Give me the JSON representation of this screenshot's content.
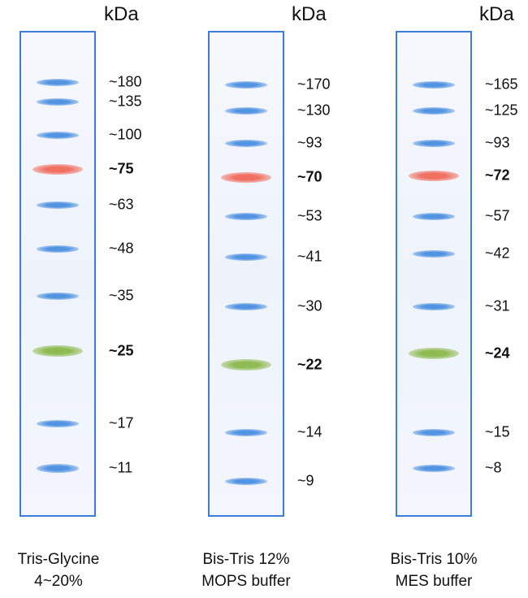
{
  "unit_label": "kDa",
  "colors": {
    "lane_border": "#3b7dd8",
    "blue_band": "#4a8fe0",
    "red_band": "#f06a5a",
    "green_band": "#8ab84a"
  },
  "panels": [
    {
      "caption_line1": "Tris-Glycine",
      "caption_line2": "4~20%",
      "bands": [
        {
          "label": "~180",
          "color": "blue",
          "bold": false
        },
        {
          "label": "~135",
          "color": "blue",
          "bold": false
        },
        {
          "label": "~100",
          "color": "blue",
          "bold": false
        },
        {
          "label": "~75",
          "color": "red",
          "bold": true
        },
        {
          "label": "~63",
          "color": "blue",
          "bold": false
        },
        {
          "label": "~48",
          "color": "blue",
          "bold": false
        },
        {
          "label": "~35",
          "color": "blue",
          "bold": false
        },
        {
          "label": "~25",
          "color": "green",
          "bold": true
        },
        {
          "label": "~17",
          "color": "blue",
          "bold": false
        },
        {
          "label": "~11",
          "color": "blue",
          "bold": false
        }
      ]
    },
    {
      "caption_line1": "Bis-Tris 12%",
      "caption_line2": "MOPS buffer",
      "bands": [
        {
          "label": "~170",
          "color": "blue",
          "bold": false
        },
        {
          "label": "~130",
          "color": "blue",
          "bold": false
        },
        {
          "label": "~93",
          "color": "blue",
          "bold": false
        },
        {
          "label": "~70",
          "color": "red",
          "bold": true
        },
        {
          "label": "~53",
          "color": "blue",
          "bold": false
        },
        {
          "label": "~41",
          "color": "blue",
          "bold": false
        },
        {
          "label": "~30",
          "color": "blue",
          "bold": false
        },
        {
          "label": "~22",
          "color": "green",
          "bold": true
        },
        {
          "label": "~14",
          "color": "blue",
          "bold": false
        },
        {
          "label": "~9",
          "color": "blue",
          "bold": false
        }
      ]
    },
    {
      "caption_line1": "Bis-Tris 10%",
      "caption_line2": "MES buffer",
      "bands": [
        {
          "label": "~165",
          "color": "blue",
          "bold": false
        },
        {
          "label": "~125",
          "color": "blue",
          "bold": false
        },
        {
          "label": "~93",
          "color": "blue",
          "bold": false
        },
        {
          "label": "~72",
          "color": "red",
          "bold": true
        },
        {
          "label": "~57",
          "color": "blue",
          "bold": false
        },
        {
          "label": "~42",
          "color": "blue",
          "bold": false
        },
        {
          "label": "~31",
          "color": "blue",
          "bold": false
        },
        {
          "label": "~24",
          "color": "green",
          "bold": true
        },
        {
          "label": "~15",
          "color": "blue",
          "bold": false
        },
        {
          "label": "~8",
          "color": "blue",
          "bold": false
        }
      ]
    }
  ]
}
